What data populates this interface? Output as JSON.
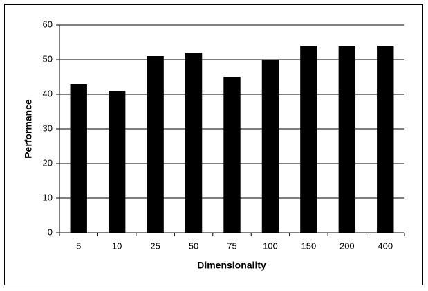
{
  "chart_data": {
    "type": "bar",
    "x_label": "Dimensionality",
    "y_label": "Performance",
    "categories": [
      "5",
      "10",
      "25",
      "50",
      "75",
      "100",
      "150",
      "200",
      "400"
    ],
    "values": [
      43,
      41,
      51,
      52,
      45,
      50,
      54,
      54,
      54
    ],
    "color": "#000000",
    "ylim": [
      0,
      60
    ],
    "yticks": [
      0,
      10,
      20,
      30,
      40,
      50,
      60
    ],
    "grid": true
  }
}
